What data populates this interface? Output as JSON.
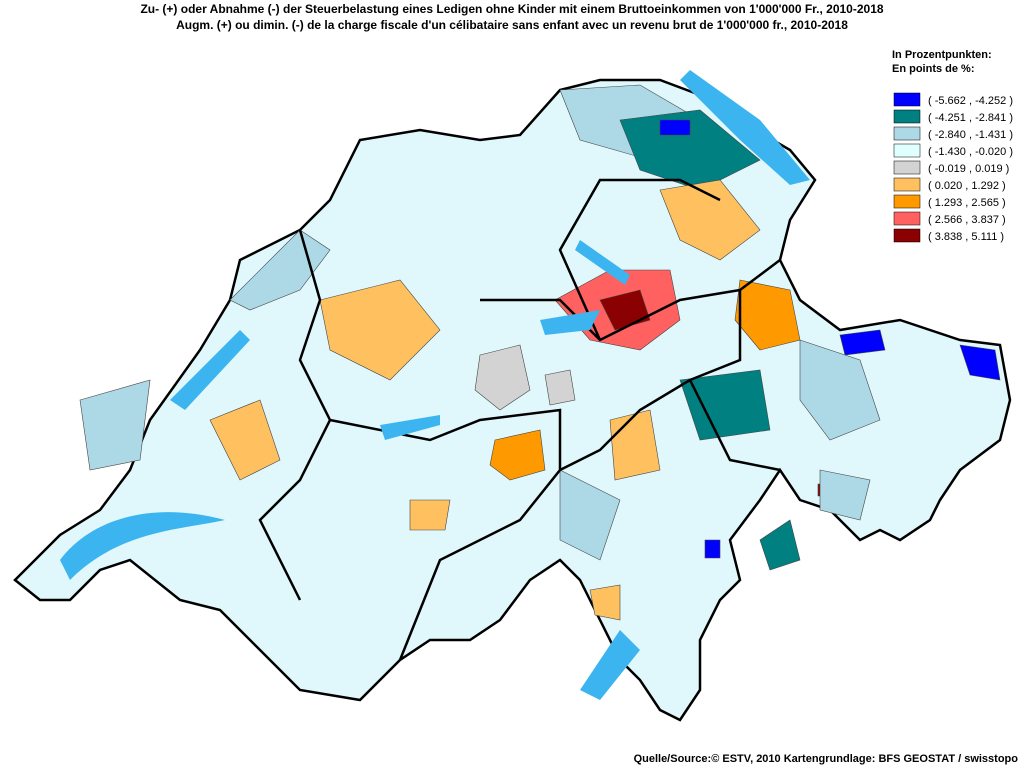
{
  "title": [
    "Zu- (+) oder Abnahme (-) der Steuerbelastung eines Ledigen ohne Kinder mit einem Bruttoeinkommen von 1'000'000 Fr., 2010-2018",
    "Augm. (+) ou dimin. (-) de la charge fiscale d'un célibataire sans enfant avec un revenu brut de 1'000'000 fr., 2010-2018"
  ],
  "legend": {
    "heading": [
      "In Prozentpunkten:",
      "En points de %:"
    ],
    "items": [
      {
        "label": "( -5.662 , -4.252 )",
        "color": "#0000ff"
      },
      {
        "label": "( -4.251 , -2.841 )",
        "color": "#008080"
      },
      {
        "label": "( -2.840 , -1.431 )",
        "color": "#add8e6"
      },
      {
        "label": "( -1.430 , -0.020 )",
        "color": "#e0ffff"
      },
      {
        "label": "( -0.019 , 0.019 )",
        "color": "#d3d3d3"
      },
      {
        "label": "( 0.020 , 1.292 )",
        "color": "#ffc060"
      },
      {
        "label": "( 1.293 , 2.565 )",
        "color": "#ff9900"
      },
      {
        "label": "( 2.566 , 3.837 )",
        "color": "#ff6060"
      },
      {
        "label": "( 3.838 , 5.111 )",
        "color": "#8b0000"
      }
    ]
  },
  "source": "Quelle/Source:© ESTV, 2010 Kartengrundlage: BFS GEOSTAT / swisstopo"
}
